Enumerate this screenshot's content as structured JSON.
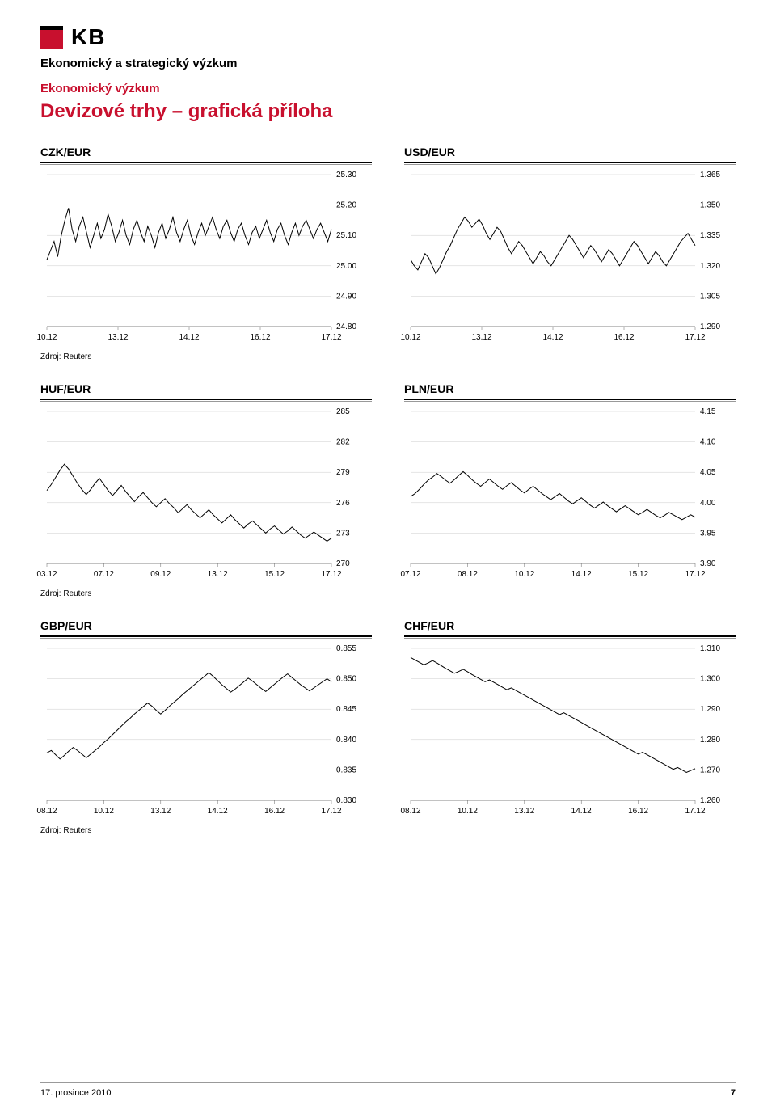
{
  "logo_text": "KB",
  "dept": "Ekonomický a strategický výzkum",
  "sub1": "Ekonomický výzkum",
  "sub1_color": "#c8102e",
  "title": "Devizové trhy – grafická příloha",
  "title_color": "#c8102e",
  "source": "Zdroj: Reuters",
  "footer_date": "17. prosince 2010",
  "footer_page": "7",
  "chart_style": {
    "line_color": "#000000",
    "grid_color": "#cccccc",
    "axis_color": "#666666",
    "tick_font_size": 10,
    "line_width": 1
  },
  "charts": [
    {
      "id": "czk",
      "title": "CZK/EUR",
      "ymin": 24.8,
      "ymax": 25.3,
      "ystep": 0.1,
      "ydec": 2,
      "xticks": [
        "10.12",
        "13.12",
        "14.12",
        "16.12",
        "17.12"
      ],
      "data": [
        25.02,
        25.05,
        25.08,
        25.03,
        25.1,
        25.15,
        25.19,
        25.12,
        25.08,
        25.13,
        25.16,
        25.11,
        25.06,
        25.1,
        25.14,
        25.09,
        25.12,
        25.17,
        25.13,
        25.08,
        25.11,
        25.15,
        25.1,
        25.07,
        25.12,
        25.15,
        25.11,
        25.08,
        25.13,
        25.1,
        25.06,
        25.11,
        25.14,
        25.09,
        25.12,
        25.16,
        25.11,
        25.08,
        25.12,
        25.15,
        25.1,
        25.07,
        25.11,
        25.14,
        25.1,
        25.13,
        25.16,
        25.12,
        25.09,
        25.13,
        25.15,
        25.11,
        25.08,
        25.12,
        25.14,
        25.1,
        25.07,
        25.11,
        25.13,
        25.09,
        25.12,
        25.15,
        25.11,
        25.08,
        25.12,
        25.14,
        25.1,
        25.07,
        25.11,
        25.14,
        25.1,
        25.13,
        25.15,
        25.12,
        25.09,
        25.12,
        25.14,
        25.11,
        25.08,
        25.12
      ]
    },
    {
      "id": "usd",
      "title": "USD/EUR",
      "ymin": 1.29,
      "ymax": 1.365,
      "ystep": 0.015,
      "ydec": 3,
      "xticks": [
        "10.12",
        "13.12",
        "14.12",
        "16.12",
        "17.12"
      ],
      "data": [
        1.323,
        1.32,
        1.318,
        1.322,
        1.326,
        1.324,
        1.32,
        1.316,
        1.319,
        1.323,
        1.327,
        1.33,
        1.334,
        1.338,
        1.341,
        1.344,
        1.342,
        1.339,
        1.341,
        1.343,
        1.34,
        1.336,
        1.333,
        1.336,
        1.339,
        1.337,
        1.333,
        1.329,
        1.326,
        1.329,
        1.332,
        1.33,
        1.327,
        1.324,
        1.321,
        1.324,
        1.327,
        1.325,
        1.322,
        1.32,
        1.323,
        1.326,
        1.329,
        1.332,
        1.335,
        1.333,
        1.33,
        1.327,
        1.324,
        1.327,
        1.33,
        1.328,
        1.325,
        1.322,
        1.325,
        1.328,
        1.326,
        1.323,
        1.32,
        1.323,
        1.326,
        1.329,
        1.332,
        1.33,
        1.327,
        1.324,
        1.321,
        1.324,
        1.327,
        1.325,
        1.322,
        1.32,
        1.323,
        1.326,
        1.329,
        1.332,
        1.334,
        1.336,
        1.333,
        1.33
      ]
    },
    {
      "id": "huf",
      "title": "HUF/EUR",
      "ymin": 270,
      "ymax": 285,
      "ystep": 3,
      "ydec": 0,
      "xticks": [
        "03.12",
        "07.12",
        "09.12",
        "13.12",
        "15.12",
        "17.12"
      ],
      "data": [
        277.2,
        277.8,
        278.5,
        279.2,
        279.8,
        279.3,
        278.6,
        277.9,
        277.3,
        276.8,
        277.3,
        277.9,
        278.4,
        277.8,
        277.2,
        276.7,
        277.2,
        277.7,
        277.1,
        276.6,
        276.1,
        276.6,
        277.0,
        276.5,
        276.0,
        275.6,
        276.0,
        276.4,
        275.9,
        275.5,
        275.0,
        275.4,
        275.8,
        275.3,
        274.9,
        274.5,
        274.9,
        275.3,
        274.8,
        274.4,
        274.0,
        274.4,
        274.8,
        274.3,
        273.9,
        273.5,
        273.9,
        274.2,
        273.8,
        273.4,
        273.0,
        273.4,
        273.7,
        273.3,
        272.9,
        273.2,
        273.6,
        273.2,
        272.8,
        272.5,
        272.8,
        273.1,
        272.8,
        272.5,
        272.2,
        272.5
      ]
    },
    {
      "id": "pln",
      "title": "PLN/EUR",
      "ymin": 3.9,
      "ymax": 4.15,
      "ystep": 0.05,
      "ydec": 2,
      "xticks": [
        "07.12",
        "08.12",
        "10.12",
        "14.12",
        "15.12",
        "17.12"
      ],
      "data": [
        4.01,
        4.015,
        4.022,
        4.03,
        4.037,
        4.042,
        4.048,
        4.043,
        4.037,
        4.032,
        4.038,
        4.045,
        4.051,
        4.045,
        4.038,
        4.032,
        4.027,
        4.033,
        4.039,
        4.033,
        4.027,
        4.022,
        4.028,
        4.033,
        4.027,
        4.021,
        4.016,
        4.022,
        4.027,
        4.021,
        4.015,
        4.01,
        4.005,
        4.01,
        4.015,
        4.009,
        4.003,
        3.998,
        4.003,
        4.008,
        4.002,
        3.996,
        3.991,
        3.996,
        4.001,
        3.995,
        3.99,
        3.985,
        3.99,
        3.995,
        3.99,
        3.985,
        3.98,
        3.984,
        3.989,
        3.984,
        3.979,
        3.975,
        3.979,
        3.984,
        3.98,
        3.976,
        3.972,
        3.976,
        3.98,
        3.976
      ]
    },
    {
      "id": "gbp",
      "title": "GBP/EUR",
      "ymin": 0.83,
      "ymax": 0.855,
      "ystep": 0.005,
      "ydec": 3,
      "xticks": [
        "08.12",
        "10.12",
        "13.12",
        "14.12",
        "16.12",
        "17.12"
      ],
      "data": [
        0.8378,
        0.8382,
        0.8375,
        0.8368,
        0.8374,
        0.8381,
        0.8387,
        0.8382,
        0.8376,
        0.837,
        0.8376,
        0.8382,
        0.8388,
        0.8395,
        0.8401,
        0.8408,
        0.8415,
        0.8422,
        0.8429,
        0.8435,
        0.8442,
        0.8448,
        0.8454,
        0.846,
        0.8455,
        0.8448,
        0.8442,
        0.8448,
        0.8455,
        0.8461,
        0.8467,
        0.8474,
        0.848,
        0.8486,
        0.8492,
        0.8498,
        0.8504,
        0.851,
        0.8504,
        0.8497,
        0.849,
        0.8484,
        0.8478,
        0.8483,
        0.8489,
        0.8495,
        0.8501,
        0.8496,
        0.849,
        0.8484,
        0.8479,
        0.8485,
        0.8491,
        0.8497,
        0.8503,
        0.8508,
        0.8502,
        0.8496,
        0.849,
        0.8485,
        0.848,
        0.8485,
        0.849,
        0.8495,
        0.85,
        0.8495
      ]
    },
    {
      "id": "chf",
      "title": "CHF/EUR",
      "ymin": 1.26,
      "ymax": 1.31,
      "ystep": 0.01,
      "ydec": 3,
      "xticks": [
        "08.12",
        "10.12",
        "13.12",
        "14.12",
        "16.12",
        "17.12"
      ],
      "data": [
        1.307,
        1.3062,
        1.3054,
        1.3046,
        1.3052,
        1.306,
        1.3052,
        1.3043,
        1.3034,
        1.3026,
        1.3018,
        1.3024,
        1.3031,
        1.3023,
        1.3014,
        1.3006,
        1.2998,
        1.299,
        1.2996,
        1.2988,
        1.298,
        1.2972,
        1.2964,
        1.297,
        1.2962,
        1.2954,
        1.2946,
        1.2938,
        1.293,
        1.2922,
        1.2914,
        1.2906,
        1.2898,
        1.289,
        1.2882,
        1.2888,
        1.288,
        1.2872,
        1.2864,
        1.2856,
        1.2848,
        1.284,
        1.2832,
        1.2824,
        1.2816,
        1.2808,
        1.28,
        1.2792,
        1.2784,
        1.2776,
        1.2768,
        1.276,
        1.2752,
        1.2758,
        1.275,
        1.2742,
        1.2734,
        1.2726,
        1.2718,
        1.271,
        1.2702,
        1.2708,
        1.27,
        1.2692,
        1.2698,
        1.2704
      ]
    }
  ]
}
